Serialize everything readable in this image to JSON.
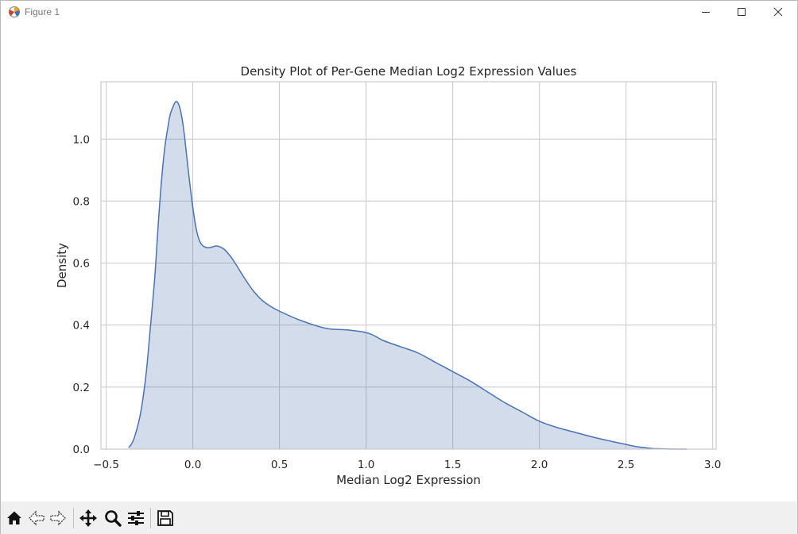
{
  "window": {
    "title": "Figure 1"
  },
  "icons": {
    "app": "matplotlib-icon",
    "minimize": "minimize-icon",
    "maximize": "maximize-icon",
    "close": "close-icon",
    "home": "home-icon",
    "back": "arrow-left-icon",
    "forward": "arrow-right-icon",
    "pan": "move-icon",
    "zoom": "magnifier-icon",
    "configure": "sliders-icon",
    "save": "floppy-disk-icon"
  },
  "chart_data": {
    "type": "area",
    "title": "Density Plot of Per-Gene Median Log2 Expression Values",
    "xlabel": "Median Log2 Expression",
    "ylabel": "Density",
    "xlim": [
      -0.53,
      3.02
    ],
    "ylim": [
      0,
      1.185
    ],
    "xticks": [
      -0.5,
      0.0,
      0.5,
      1.0,
      1.5,
      2.0,
      2.5,
      3.0
    ],
    "xtick_labels": [
      "−0.5",
      "0.0",
      "0.5",
      "1.0",
      "1.5",
      "2.0",
      "2.5",
      "3.0"
    ],
    "yticks": [
      0.0,
      0.2,
      0.4,
      0.6,
      0.8,
      1.0
    ],
    "ytick_labels": [
      "0.0",
      "0.2",
      "0.4",
      "0.6",
      "0.8",
      "1.0"
    ],
    "grid": true,
    "line_color": "#4c72b0",
    "fill_color": "#4c72b0",
    "fill_alpha": 0.25,
    "series": [
      {
        "x": [
          -0.37,
          -0.35,
          -0.33,
          -0.3,
          -0.27,
          -0.25,
          -0.22,
          -0.2,
          -0.18,
          -0.16,
          -0.14,
          -0.13,
          -0.11,
          -0.1,
          -0.09,
          -0.08,
          -0.07,
          -0.06,
          -0.05,
          -0.04,
          -0.02,
          0.0,
          0.02,
          0.04,
          0.06,
          0.08,
          0.1,
          0.14,
          0.18,
          0.22,
          0.25,
          0.3,
          0.35,
          0.4,
          0.45,
          0.5,
          0.6,
          0.7,
          0.75,
          0.8,
          0.9,
          1.0,
          1.05,
          1.1,
          1.2,
          1.3,
          1.4,
          1.5,
          1.6,
          1.7,
          1.8,
          1.9,
          2.0,
          2.1,
          2.2,
          2.3,
          2.4,
          2.5,
          2.55,
          2.6,
          2.65,
          2.7,
          2.8,
          2.85
        ],
        "y": [
          0.005,
          0.02,
          0.05,
          0.12,
          0.24,
          0.36,
          0.55,
          0.72,
          0.87,
          0.98,
          1.05,
          1.08,
          1.11,
          1.12,
          1.12,
          1.11,
          1.09,
          1.06,
          1.02,
          0.97,
          0.87,
          0.78,
          0.71,
          0.67,
          0.655,
          0.65,
          0.65,
          0.655,
          0.645,
          0.62,
          0.595,
          0.55,
          0.51,
          0.48,
          0.46,
          0.445,
          0.42,
          0.4,
          0.392,
          0.387,
          0.384,
          0.376,
          0.365,
          0.35,
          0.33,
          0.31,
          0.28,
          0.25,
          0.22,
          0.185,
          0.15,
          0.12,
          0.09,
          0.07,
          0.055,
          0.04,
          0.027,
          0.015,
          0.009,
          0.005,
          0.002,
          0.001,
          0.0,
          0.0
        ]
      }
    ]
  }
}
